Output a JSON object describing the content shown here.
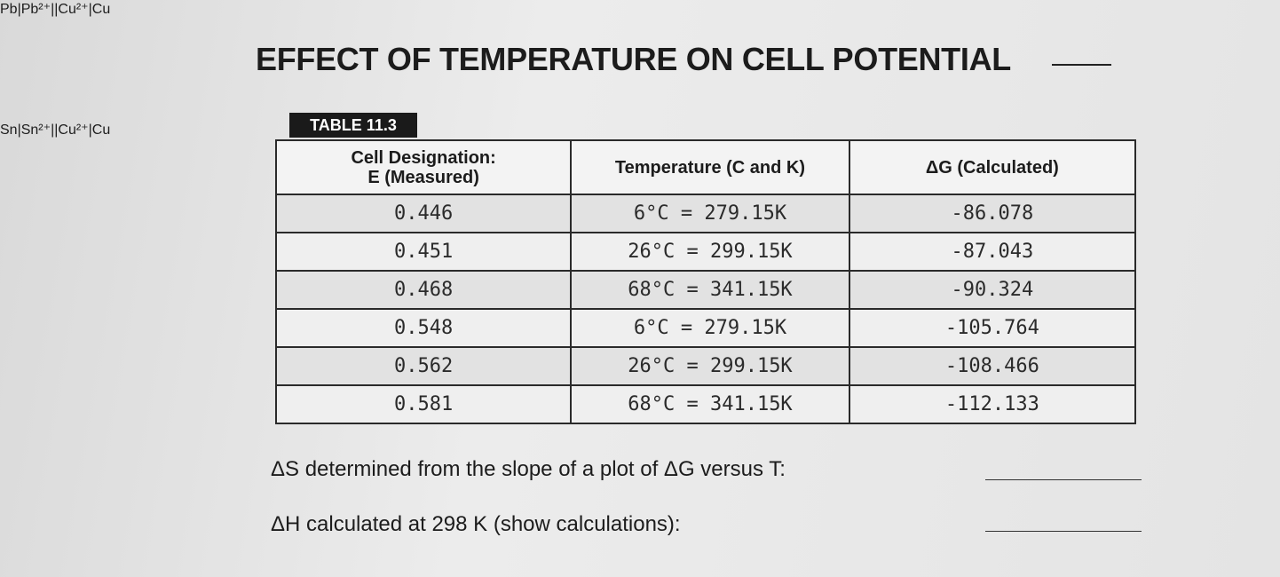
{
  "header": {
    "title": "EFFECT OF TEMPERATURE ON CELL POTENTIAL"
  },
  "table": {
    "label": "TABLE 11.3",
    "columns": [
      [
        "Cell Designation:",
        "E (Measured)"
      ],
      [
        "Temperature (C and K)"
      ],
      [
        "ΔG (Calculated)"
      ]
    ],
    "rows": [
      [
        "0.446",
        "6°C = 279.15K",
        "-86.078"
      ],
      [
        "0.451",
        "26°C = 299.15K",
        "-87.043"
      ],
      [
        "0.468",
        "68°C = 341.15K",
        "-90.324"
      ],
      [
        "0.548",
        "6°C = 279.15K",
        "-105.764"
      ],
      [
        "0.562",
        "26°C = 299.15K",
        "-108.466"
      ],
      [
        "0.581",
        "68°C = 341.15K",
        "-112.133"
      ]
    ]
  },
  "cells": [
    "Pb|Pb²⁺||Cu²⁺|Cu",
    "Sn|Sn²⁺||Cu²⁺|Cu"
  ],
  "questions": [
    "ΔS determined from the slope of a plot of ΔG versus T:",
    "ΔH calculated at 298 K (show calculations):"
  ]
}
